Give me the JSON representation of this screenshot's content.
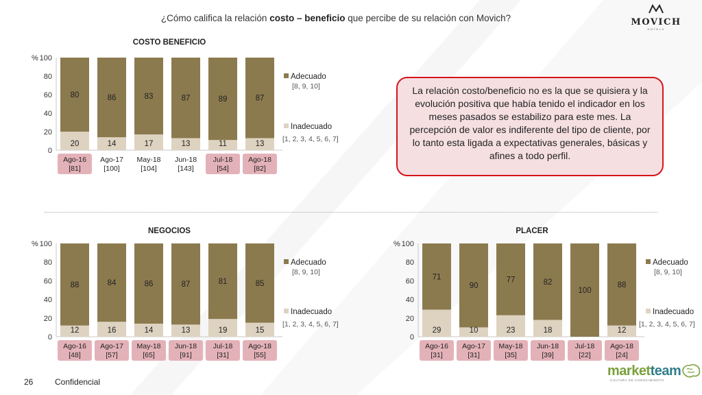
{
  "header": {
    "question_prefix": "¿Cómo califica la relación ",
    "question_bold": "costo – beneficio",
    "question_suffix": " que percibe de su relación con Movich?"
  },
  "logo_movich": {
    "brand": "MOVICH",
    "sub": "HOTELS"
  },
  "note": "La relación costo/beneficio no es la que se quisiera y la evolución positiva que había tenido el indicador en los meses pasados se estabilizo para este mes. La percepción de valor es indiferente del tipo de cliente, por lo tanto esta ligada a expectativas generales, básicas y afines a todo perfil.",
  "footer": {
    "page_number": "26",
    "label": "Confidencial"
  },
  "logo_marketteam": {
    "brand_a": "market",
    "brand_b": "team",
    "sub": "CULTURA DE CONOCIMIENTO"
  },
  "colors": {
    "adecuado": "#8c7a4f",
    "inadecuado": "#ded3c1",
    "highlight": "#e3b2b8",
    "note_border": "#d7141a",
    "note_fill": "#f5dfe1"
  },
  "chart_data": [
    {
      "id": "costo",
      "type": "bar",
      "stacked": true,
      "title": "COSTO BENEFICIO",
      "ylabel": "%",
      "ylim": [
        0,
        100
      ],
      "yticks": [
        "0",
        "20",
        "40",
        "60",
        "80",
        "100"
      ],
      "categories": [
        "Ago-16",
        "Ago-17",
        "May-18",
        "Jun-18",
        "Jul-18",
        "Ago-18"
      ],
      "sample_sizes": [
        "[81]",
        "[100]",
        "[104]",
        "[143]",
        "[54]",
        "[82]"
      ],
      "highlighted": [
        true,
        false,
        false,
        false,
        true,
        true
      ],
      "series": [
        {
          "name": "Inadecuado",
          "scale": "[1, 2, 3, 4, 5, 6, 7]",
          "values": [
            20,
            14,
            17,
            13,
            11,
            13
          ]
        },
        {
          "name": "Adecuado",
          "scale": "[8, 9, 10]",
          "values": [
            80,
            86,
            83,
            87,
            89,
            87
          ]
        }
      ]
    },
    {
      "id": "negocios",
      "type": "bar",
      "stacked": true,
      "title": "NEGOCIOS",
      "ylabel": "%",
      "ylim": [
        0,
        100
      ],
      "yticks": [
        "0",
        "20",
        "40",
        "60",
        "80",
        "100"
      ],
      "categories": [
        "Ago-16",
        "Ago-17",
        "May-18",
        "Jun-18",
        "Jul-18",
        "Ago-18"
      ],
      "sample_sizes": [
        "[48]",
        "[57]",
        "[65]",
        "[91]",
        "[31]",
        "[55]"
      ],
      "highlighted": [
        true,
        true,
        true,
        true,
        true,
        true
      ],
      "series": [
        {
          "name": "Inadecuado",
          "scale": "[1, 2, 3, 4, 5, 6, 7]",
          "values": [
            12,
            16,
            14,
            13,
            19,
            15
          ]
        },
        {
          "name": "Adecuado",
          "scale": "[8, 9, 10]",
          "values": [
            88,
            84,
            86,
            87,
            81,
            85
          ]
        }
      ]
    },
    {
      "id": "placer",
      "type": "bar",
      "stacked": true,
      "title": "PLACER",
      "ylabel": "%",
      "ylim": [
        0,
        100
      ],
      "yticks": [
        "0",
        "20",
        "40",
        "60",
        "80",
        "100"
      ],
      "categories": [
        "Ago-16",
        "Ago-17",
        "May-18",
        "Jun-18",
        "Jul-18",
        "Ago-18"
      ],
      "sample_sizes": [
        "[31]",
        "[31]",
        "[35]",
        "[39]",
        "[22]",
        "[24]"
      ],
      "highlighted": [
        true,
        true,
        true,
        true,
        true,
        true
      ],
      "series": [
        {
          "name": "Inadecuado",
          "scale": "[1, 2, 3, 4, 5, 6, 7]",
          "values": [
            29,
            10,
            23,
            18,
            0,
            12
          ]
        },
        {
          "name": "Adecuado",
          "scale": "[8, 9, 10]",
          "values": [
            71,
            90,
            77,
            82,
            100,
            88
          ]
        }
      ]
    }
  ]
}
